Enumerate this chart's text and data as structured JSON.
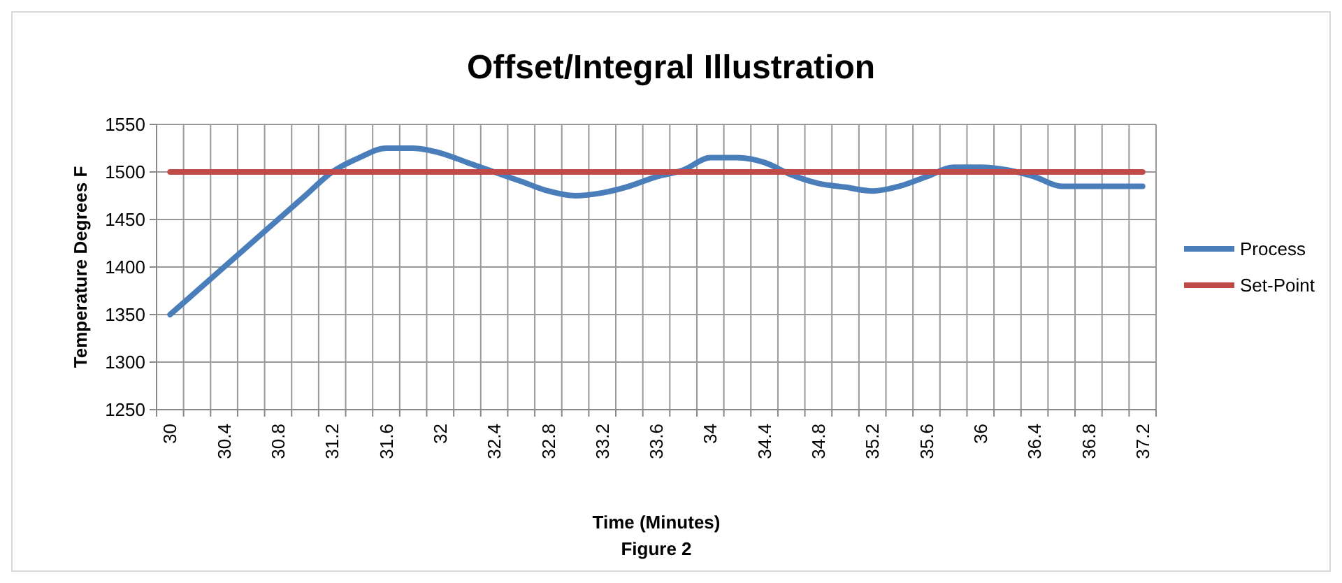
{
  "chart_data": {
    "type": "line",
    "title": "Offset/Integral Illustration",
    "xlabel": "Time (Minutes)",
    "ylabel": "Temperature Degrees F",
    "annotations": [
      "Figure 2"
    ],
    "categories": [
      "30",
      null,
      "30.4",
      null,
      "30.8",
      null,
      "31.2",
      null,
      "31.6",
      null,
      "32",
      null,
      "32.4",
      null,
      "32.8",
      null,
      "33.2",
      null,
      "33.6",
      null,
      "34",
      null,
      "34.4",
      null,
      "34.8",
      null,
      "35.2",
      null,
      "35.6",
      null,
      "36",
      null,
      "36.4",
      null,
      "36.8",
      null,
      "37.2"
    ],
    "series": [
      {
        "name": "Process",
        "color": "#4a7ebb",
        "values": [
          1350,
          1375,
          1400,
          1425,
          1450,
          1475,
          1500,
          1515,
          1525,
          1525,
          1520,
          1510,
          1500,
          1490,
          1480,
          1475,
          1478,
          1485,
          1495,
          1502,
          1515,
          1515,
          1510,
          1497,
          1488,
          1484,
          1480,
          1485,
          1495,
          1505,
          1505,
          1502,
          1495,
          1485,
          1485,
          1485,
          1485
        ]
      },
      {
        "name": "Set-Point",
        "color": "#be4b48",
        "values": [
          1500,
          1500,
          1500,
          1500,
          1500,
          1500,
          1500,
          1500,
          1500,
          1500,
          1500,
          1500,
          1500,
          1500,
          1500,
          1500,
          1500,
          1500,
          1500,
          1500,
          1500,
          1500,
          1500,
          1500,
          1500,
          1500,
          1500,
          1500,
          1500,
          1500,
          1500,
          1500,
          1500,
          1500,
          1500,
          1500,
          1500
        ]
      }
    ],
    "ylim": [
      1250,
      1550
    ],
    "yticks": [
      1250,
      1300,
      1350,
      1400,
      1450,
      1500,
      1550
    ],
    "grid": true,
    "legend": "right"
  }
}
